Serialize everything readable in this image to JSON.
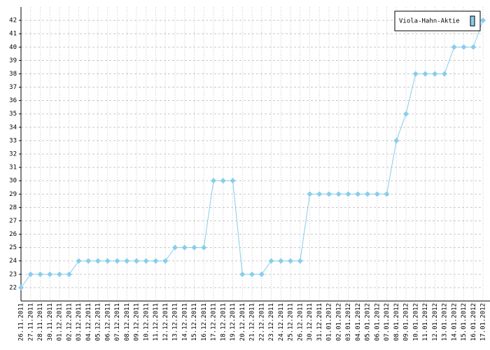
{
  "chart_data": {
    "type": "line",
    "categories": [
      "26.11.2011",
      "27.11.2011",
      "28.11.2011",
      "30.11.2011",
      "01.12.2011",
      "02.12.2011",
      "03.12.2011",
      "04.12.2011",
      "05.12.2011",
      "06.12.2011",
      "07.12.2011",
      "08.12.2011",
      "09.12.2011",
      "10.12.2011",
      "11.12.2011",
      "12.12.2011",
      "13.12.2011",
      "14.12.2011",
      "15.12.2011",
      "16.12.2011",
      "17.12.2011",
      "18.12.2011",
      "19.12.2011",
      "20.12.2011",
      "21.12.2011",
      "22.12.2011",
      "23.12.2011",
      "24.12.2011",
      "25.12.2011",
      "26.12.2011",
      "30.12.2011",
      "31.12.2011",
      "01.01.2012",
      "02.01.2012",
      "03.01.2012",
      "04.01.2012",
      "05.01.2012",
      "06.01.2012",
      "07.01.2012",
      "08.01.2012",
      "09.01.2012",
      "10.01.2012",
      "11.01.2012",
      "12.01.2012",
      "13.01.2012",
      "14.01.2012",
      "15.01.2012",
      "16.01.2012",
      "17.01.2012"
    ],
    "series": [
      {
        "name": "Viola-Hahn-Aktie",
        "color": "#87ceeb",
        "values": [
          22,
          23,
          23,
          23,
          23,
          23,
          24,
          24,
          24,
          24,
          24,
          24,
          24,
          24,
          24,
          24,
          25,
          25,
          25,
          25,
          30,
          30,
          30,
          23,
          23,
          23,
          24,
          24,
          24,
          24,
          29,
          29,
          29,
          29,
          29,
          29,
          29,
          29,
          29,
          33,
          35,
          38,
          38,
          38,
          38,
          40,
          40,
          40,
          42
        ]
      }
    ],
    "ylim": [
      21,
      43
    ],
    "yticks": [
      22,
      23,
      24,
      25,
      26,
      27,
      28,
      29,
      30,
      31,
      32,
      33,
      34,
      35,
      36,
      37,
      38,
      39,
      40,
      41,
      42
    ],
    "grid": true,
    "legend": "upper right"
  }
}
